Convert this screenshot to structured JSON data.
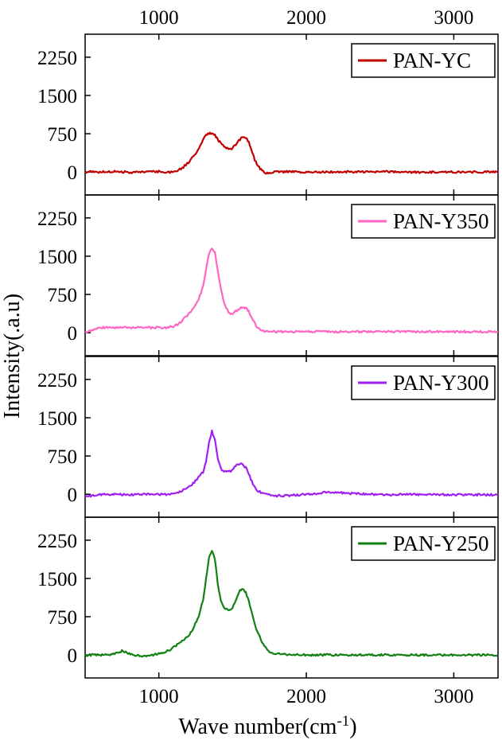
{
  "chart_data": {
    "type": "line",
    "xlabel": "Wave number(cm",
    "xlabel_superscript": "-1",
    "xlabel_suffix": ")",
    "ylabel": "Intensity(.a.u)",
    "xlim": [
      500,
      3300
    ],
    "x_ticks": [
      1000,
      2000,
      3000
    ],
    "x_tick_labels": [
      "1000",
      "2000",
      "3000"
    ],
    "grid": false,
    "legend_placement": "top-right",
    "panels": [
      {
        "name": "PAN-YC",
        "color": "#c00000",
        "ylim": [
          -450,
          2700
        ],
        "y_ticks": [
          0,
          750,
          1500,
          2250
        ],
        "y_tick_labels": [
          "0",
          "750",
          "1500",
          "2250"
        ],
        "x": [
          500,
          600,
          700,
          800,
          900,
          1000,
          1050,
          1100,
          1150,
          1200,
          1250,
          1280,
          1300,
          1320,
          1340,
          1360,
          1380,
          1400,
          1420,
          1450,
          1480,
          1500,
          1520,
          1550,
          1570,
          1590,
          1610,
          1630,
          1650,
          1680,
          1700,
          1720,
          1750,
          1800,
          1900,
          2000,
          2200,
          2500,
          2800,
          3000,
          3300
        ],
        "y": [
          0,
          0,
          10,
          -5,
          0,
          10,
          -5,
          5,
          60,
          180,
          360,
          520,
          640,
          720,
          760,
          760,
          720,
          640,
          560,
          490,
          450,
          470,
          540,
          640,
          700,
          680,
          580,
          420,
          240,
          90,
          20,
          -20,
          -10,
          0,
          5,
          -5,
          0,
          5,
          -5,
          0,
          0
        ]
      },
      {
        "name": "PAN-Y350",
        "color": "#ff66c4",
        "ylim": [
          -450,
          2700
        ],
        "y_ticks": [
          0,
          750,
          1500,
          2250
        ],
        "y_tick_labels": [
          "0",
          "750",
          "1500",
          "2250"
        ],
        "x": [
          500,
          600,
          700,
          800,
          900,
          1000,
          1050,
          1100,
          1150,
          1200,
          1240,
          1270,
          1300,
          1320,
          1340,
          1360,
          1380,
          1400,
          1420,
          1450,
          1480,
          1500,
          1520,
          1550,
          1570,
          1590,
          1610,
          1630,
          1660,
          1700,
          1750,
          1800,
          1900,
          2000,
          2200,
          2500,
          2800,
          3000,
          3300
        ],
        "y": [
          0,
          100,
          100,
          100,
          100,
          100,
          100,
          120,
          210,
          360,
          500,
          660,
          900,
          1220,
          1560,
          1660,
          1560,
          1220,
          860,
          520,
          380,
          380,
          420,
          480,
          500,
          480,
          420,
          290,
          130,
          40,
          20,
          20,
          20,
          20,
          20,
          20,
          20,
          20,
          20
        ]
      },
      {
        "name": "PAN-Y300",
        "color": "#a020f0",
        "ylim": [
          -450,
          2700
        ],
        "y_ticks": [
          0,
          750,
          1500,
          2250
        ],
        "y_tick_labels": [
          "0",
          "750",
          "1500",
          "2250"
        ],
        "x": [
          500,
          600,
          700,
          800,
          900,
          1000,
          1050,
          1100,
          1150,
          1200,
          1240,
          1270,
          1300,
          1320,
          1340,
          1360,
          1380,
          1400,
          1420,
          1450,
          1480,
          1500,
          1520,
          1550,
          1570,
          1590,
          1610,
          1630,
          1660,
          1700,
          1750,
          1800,
          1900,
          2000,
          2150,
          2500,
          2800,
          3000,
          3300
        ],
        "y": [
          -40,
          -10,
          0,
          -10,
          5,
          0,
          -10,
          10,
          60,
          130,
          240,
          330,
          440,
          640,
          1020,
          1230,
          1060,
          700,
          500,
          440,
          450,
          480,
          560,
          610,
          590,
          520,
          400,
          250,
          90,
          20,
          -20,
          -30,
          -20,
          0,
          40,
          -10,
          0,
          -10,
          -10
        ]
      },
      {
        "name": "PAN-Y250",
        "color": "#128012",
        "ylim": [
          -450,
          2700
        ],
        "y_ticks": [
          0,
          750,
          1500,
          2250
        ],
        "y_tick_labels": [
          "0",
          "750",
          "1500",
          "2250"
        ],
        "x": [
          500,
          600,
          700,
          750,
          800,
          900,
          1000,
          1050,
          1100,
          1150,
          1200,
          1240,
          1270,
          1300,
          1320,
          1340,
          1360,
          1380,
          1400,
          1420,
          1450,
          1480,
          1500,
          1520,
          1550,
          1570,
          1590,
          1610,
          1630,
          1660,
          1700,
          1730,
          1750,
          1800,
          1900,
          2000,
          2200,
          2500,
          2800,
          3000,
          3300
        ],
        "y": [
          0,
          0,
          20,
          80,
          20,
          -30,
          20,
          60,
          150,
          260,
          370,
          560,
          760,
          1080,
          1500,
          1900,
          2060,
          1880,
          1400,
          1050,
          900,
          880,
          920,
          1060,
          1260,
          1300,
          1220,
          1050,
          820,
          500,
          250,
          120,
          60,
          20,
          0,
          0,
          0,
          0,
          0,
          0,
          0
        ]
      }
    ]
  }
}
